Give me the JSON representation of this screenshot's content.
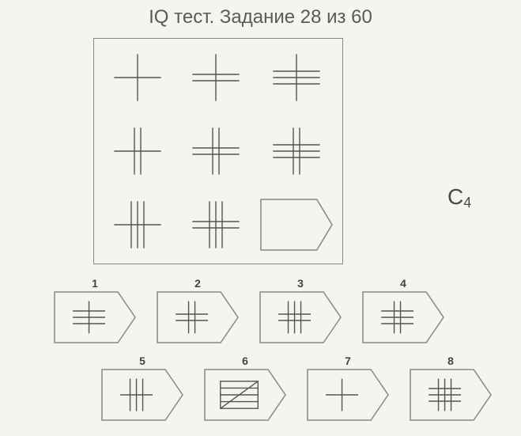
{
  "title": "IQ тест. Задание 28 из 60",
  "side_label_main": "С",
  "side_label_sub": "4",
  "line_color": "#555555",
  "border_color": "#888888",
  "line_width": 1.4,
  "matrix_cell_size": 78,
  "placeholder_size": {
    "w": 92,
    "h": 66
  },
  "answer_box": {
    "w": 104,
    "h": 66
  },
  "matrix": [
    [
      {
        "v": 1,
        "h": 1
      },
      {
        "v": 1,
        "h": 2
      },
      {
        "v": 1,
        "h": 3
      }
    ],
    [
      {
        "v": 2,
        "h": 1
      },
      {
        "v": 2,
        "h": 2
      },
      {
        "v": 2,
        "h": 3
      }
    ],
    [
      {
        "v": 3,
        "h": 1
      },
      {
        "v": 3,
        "h": 2
      },
      null
    ]
  ],
  "options": [
    {
      "label": "1",
      "type": "grid",
      "v": 1,
      "h": 3
    },
    {
      "label": "2",
      "type": "grid",
      "v": 2,
      "h": 2
    },
    {
      "label": "3",
      "type": "grid",
      "v": 3,
      "h": 2
    },
    {
      "label": "4",
      "type": "grid",
      "v": 2,
      "h": 3
    },
    {
      "label": "5",
      "type": "grid",
      "v": 3,
      "h": 1
    },
    {
      "label": "6",
      "type": "rect_diag",
      "h": 3
    },
    {
      "label": "7",
      "type": "grid",
      "v": 1,
      "h": 1
    },
    {
      "label": "8",
      "type": "grid",
      "v": 3,
      "h": 3
    }
  ]
}
